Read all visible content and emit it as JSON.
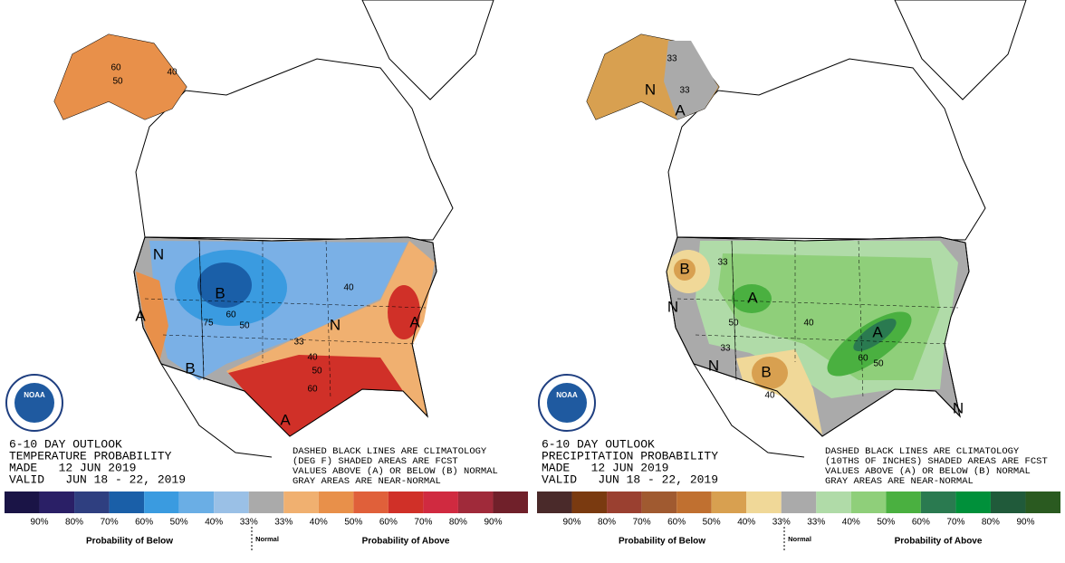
{
  "panels": [
    {
      "title": "6-10 DAY OUTLOOK",
      "subtitle": "TEMPERATURE PROBABILITY",
      "made": "MADE   12 JUN 2019",
      "valid": "VALID   JUN 18 - 22, 2019",
      "note": [
        "DASHED BLACK LINES ARE CLIMATOLOGY",
        "(DEG F) SHADED AREAS ARE FCST",
        "VALUES ABOVE (A) OR BELOW (B) NORMAL",
        "GRAY AREAS ARE NEAR-NORMAL"
      ],
      "logo": "NOAA",
      "map_labels": [
        "B",
        "A",
        "N",
        "A",
        "N",
        "B",
        "A",
        "60",
        "50",
        "40",
        "33",
        "40",
        "50",
        "60",
        "75",
        "60",
        "50",
        "40"
      ],
      "legend": {
        "colors": [
          "#1a1446",
          "#2a1f66",
          "#2f3f80",
          "#1a5fa8",
          "#3a9be0",
          "#6aaee5",
          "#9ac0e6",
          "#aaaaaa",
          "#f0b070",
          "#e8904a",
          "#e0603a",
          "#d03028",
          "#d02a40",
          "#a02a3a",
          "#70202a"
        ],
        "labels": [
          "90%",
          "80%",
          "70%",
          "60%",
          "50%",
          "40%",
          "33%",
          "33%",
          "40%",
          "50%",
          "60%",
          "70%",
          "80%",
          "90%"
        ],
        "below": "Probability of Below",
        "normal": "Normal",
        "above": "Probability of Above"
      }
    },
    {
      "title": "6-10 DAY OUTLOOK",
      "subtitle": "PRECIPITATION PROBABILITY",
      "made": "MADE   12 JUN 2019",
      "valid": "VALID   JUN 18 - 22, 2019",
      "note": [
        "DASHED BLACK LINES ARE CLIMATOLOGY",
        "(10THS OF INCHES) SHADED AREAS ARE FCST",
        "VALUES ABOVE (A) OR BELOW (B) NORMAL",
        "GRAY AREAS ARE NEAR-NORMAL"
      ],
      "logo": "NOAA",
      "map_labels": [
        "B",
        "N",
        "A",
        "N",
        "B",
        "A",
        "N",
        "33",
        "50",
        "40",
        "33",
        "40",
        "60",
        "50",
        "33",
        "33",
        "A",
        "N"
      ],
      "legend": {
        "colors": [
          "#4a2a2a",
          "#7a3a10",
          "#9a4030",
          "#a05a30",
          "#c07030",
          "#d8a050",
          "#f0d898",
          "#aaaaaa",
          "#b0dba8",
          "#8fcf7a",
          "#4ab040",
          "#2a7a50",
          "#00903a",
          "#205a3a",
          "#2a5a20"
        ],
        "labels": [
          "90%",
          "80%",
          "70%",
          "60%",
          "50%",
          "40%",
          "33%",
          "33%",
          "40%",
          "50%",
          "60%",
          "70%",
          "80%",
          "90%"
        ],
        "below": "Probability of Below",
        "normal": "Normal",
        "above": "Probability of Above"
      }
    }
  ]
}
